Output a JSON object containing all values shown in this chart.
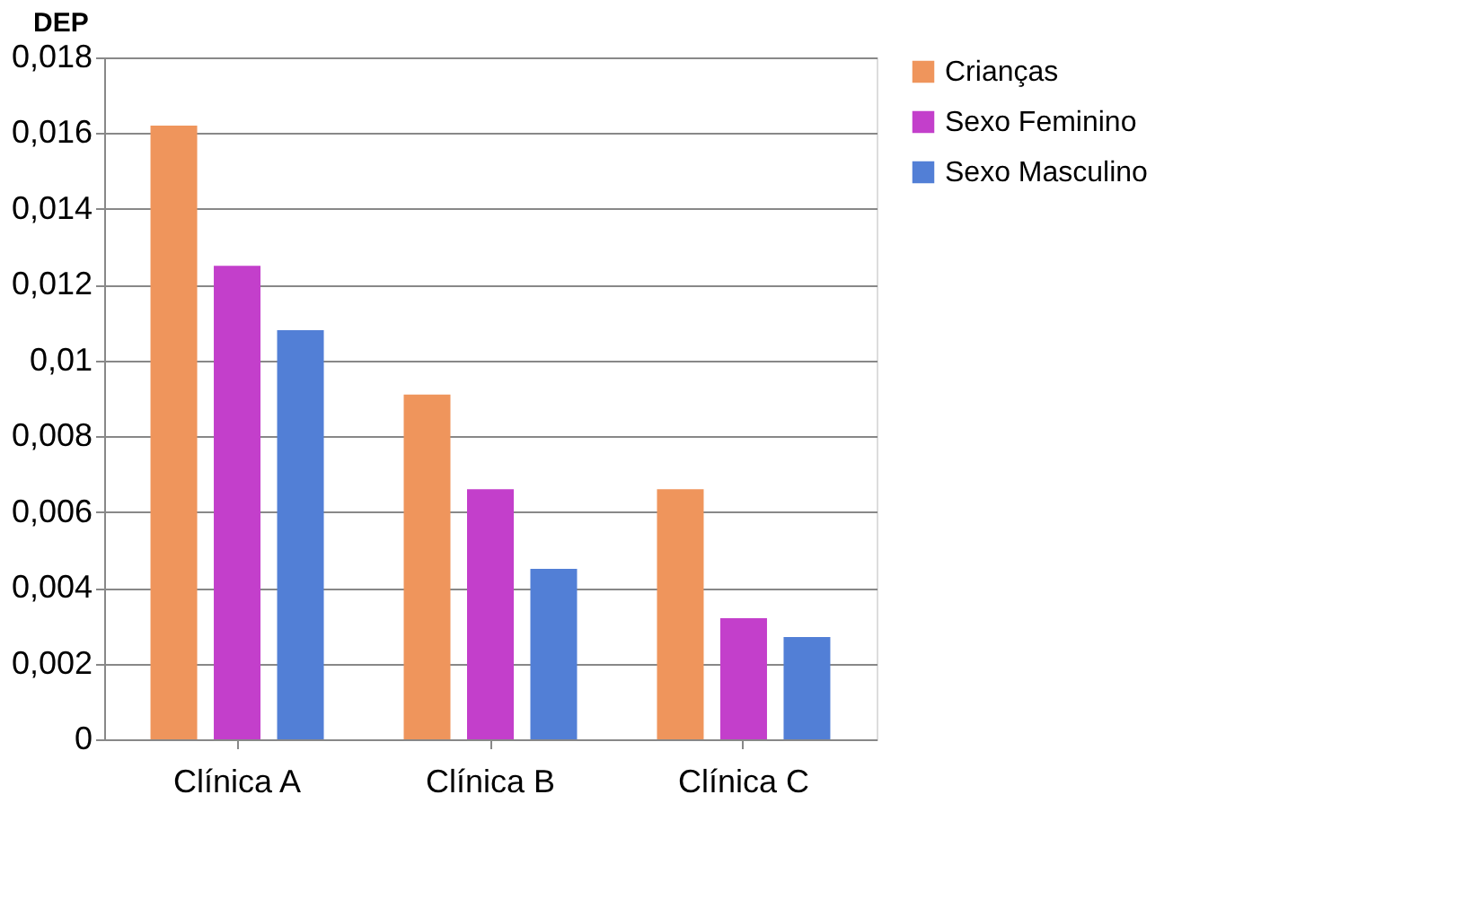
{
  "chart_data": {
    "type": "bar",
    "ylabel": "DEP",
    "categories": [
      "Clínica A",
      "Clínica B",
      "Clínica C"
    ],
    "series": [
      {
        "name": "Crianças",
        "color": "#ef955c",
        "values": [
          0.0162,
          0.0091,
          0.0066
        ]
      },
      {
        "name": "Sexo Feminino",
        "color": "#c33fcb",
        "values": [
          0.0125,
          0.0066,
          0.0032
        ]
      },
      {
        "name": "Sexo Masculino",
        "color": "#527fd6",
        "values": [
          0.0108,
          0.0045,
          0.0027
        ]
      }
    ],
    "ylim": [
      0,
      0.018
    ],
    "yticks": [
      {
        "value": 0,
        "label": "0"
      },
      {
        "value": 0.002,
        "label": "0,002"
      },
      {
        "value": 0.004,
        "label": "0,004"
      },
      {
        "value": 0.006,
        "label": "0,006"
      },
      {
        "value": 0.008,
        "label": "0,008"
      },
      {
        "value": 0.01,
        "label": "0,01"
      },
      {
        "value": 0.012,
        "label": "0,012"
      },
      {
        "value": 0.014,
        "label": "0,014"
      },
      {
        "value": 0.016,
        "label": "0,016"
      },
      {
        "value": 0.018,
        "label": "0,018"
      }
    ],
    "grid": "y",
    "legend": "right"
  }
}
